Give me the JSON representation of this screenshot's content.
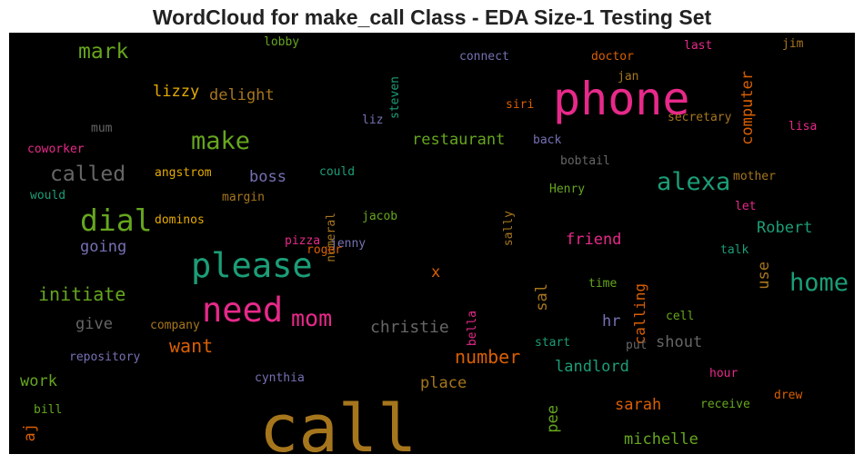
{
  "title": "WordCloud for make_call Class - EDA Size-1 Testing Set",
  "chart_data": {
    "type": "wordcloud",
    "title": "WordCloud for make_call Class - EDA Size-1 Testing Set",
    "background": "#000000",
    "words": [
      {
        "text": "call",
        "color": "#a6761d"
      },
      {
        "text": "phone",
        "color": "#e7298a"
      },
      {
        "text": "please",
        "color": "#1b9e77"
      },
      {
        "text": "need",
        "color": "#e7298a"
      },
      {
        "text": "dial",
        "color": "#66a61e"
      },
      {
        "text": "make",
        "color": "#66a61e"
      },
      {
        "text": "alexa",
        "color": "#1b9e77"
      },
      {
        "text": "home",
        "color": "#1b9e77"
      },
      {
        "text": "mom",
        "color": "#e7298a"
      },
      {
        "text": "called",
        "color": "#666666"
      },
      {
        "text": "mark",
        "color": "#66a61e"
      },
      {
        "text": "initiate",
        "color": "#66a61e"
      },
      {
        "text": "number",
        "color": "#d95f02"
      },
      {
        "text": "want",
        "color": "#d95f02"
      },
      {
        "text": "christie",
        "color": "#666666"
      },
      {
        "text": "restaurant",
        "color": "#66a61e"
      },
      {
        "text": "delight",
        "color": "#a6761d"
      },
      {
        "text": "lizzy",
        "color": "#e6ab02"
      },
      {
        "text": "computer",
        "color": "#d95f02"
      },
      {
        "text": "going",
        "color": "#7570b3"
      },
      {
        "text": "boss",
        "color": "#7570b3"
      },
      {
        "text": "friend",
        "color": "#e7298a"
      },
      {
        "text": "Robert",
        "color": "#1b9e77"
      },
      {
        "text": "calling",
        "color": "#d95f02"
      },
      {
        "text": "landlord",
        "color": "#1b9e77"
      },
      {
        "text": "michelle",
        "color": "#66a61e"
      },
      {
        "text": "sarah",
        "color": "#d95f02"
      },
      {
        "text": "shout",
        "color": "#666666"
      },
      {
        "text": "place",
        "color": "#a6761d"
      },
      {
        "text": "give",
        "color": "#666666"
      },
      {
        "text": "work",
        "color": "#66a61e"
      },
      {
        "text": "aj",
        "color": "#d95f02"
      },
      {
        "text": "use",
        "color": "#a6761d"
      },
      {
        "text": "sal",
        "color": "#a6761d"
      },
      {
        "text": "pee",
        "color": "#66a61e"
      },
      {
        "text": "hr",
        "color": "#7570b3"
      },
      {
        "text": "x",
        "color": "#d95f02"
      },
      {
        "text": "lobby",
        "color": "#66a61e"
      },
      {
        "text": "connect",
        "color": "#7570b3"
      },
      {
        "text": "doctor",
        "color": "#d95f02"
      },
      {
        "text": "last",
        "color": "#e7298a"
      },
      {
        "text": "jim",
        "color": "#a6761d"
      },
      {
        "text": "jan",
        "color": "#a6761d"
      },
      {
        "text": "steven",
        "color": "#1b9e77"
      },
      {
        "text": "siri",
        "color": "#d95f02"
      },
      {
        "text": "secretary",
        "color": "#a6761d"
      },
      {
        "text": "lisa",
        "color": "#e7298a"
      },
      {
        "text": "mum",
        "color": "#666666"
      },
      {
        "text": "liz",
        "color": "#7570b3"
      },
      {
        "text": "back",
        "color": "#7570b3"
      },
      {
        "text": "coworker",
        "color": "#e7298a"
      },
      {
        "text": "bobtail",
        "color": "#666666"
      },
      {
        "text": "mother",
        "color": "#a6761d"
      },
      {
        "text": "angstrom",
        "color": "#e6ab02"
      },
      {
        "text": "could",
        "color": "#1b9e77"
      },
      {
        "text": "would",
        "color": "#1b9e77"
      },
      {
        "text": "margin",
        "color": "#a6761d"
      },
      {
        "text": "Henry",
        "color": "#66a61e"
      },
      {
        "text": "let",
        "color": "#e7298a"
      },
      {
        "text": "dominos",
        "color": "#e6ab02"
      },
      {
        "text": "numeral",
        "color": "#a6761d"
      },
      {
        "text": "jacob",
        "color": "#66a61e"
      },
      {
        "text": "sally",
        "color": "#a6761d"
      },
      {
        "text": "pizza",
        "color": "#e7298a"
      },
      {
        "text": "jenny",
        "color": "#7570b3"
      },
      {
        "text": "roger",
        "color": "#d95f02"
      },
      {
        "text": "talk",
        "color": "#1b9e77"
      },
      {
        "text": "time",
        "color": "#66a61e"
      },
      {
        "text": "company",
        "color": "#a6761d"
      },
      {
        "text": "bella",
        "color": "#e7298a"
      },
      {
        "text": "cell",
        "color": "#66a61e"
      },
      {
        "text": "repository",
        "color": "#7570b3"
      },
      {
        "text": "start",
        "color": "#1b9e77"
      },
      {
        "text": "put",
        "color": "#666666"
      },
      {
        "text": "cynthia",
        "color": "#7570b3"
      },
      {
        "text": "hour",
        "color": "#e7298a"
      },
      {
        "text": "bill",
        "color": "#66a61e"
      },
      {
        "text": "drew",
        "color": "#d95f02"
      },
      {
        "text": "receive",
        "color": "#66a61e"
      }
    ]
  }
}
